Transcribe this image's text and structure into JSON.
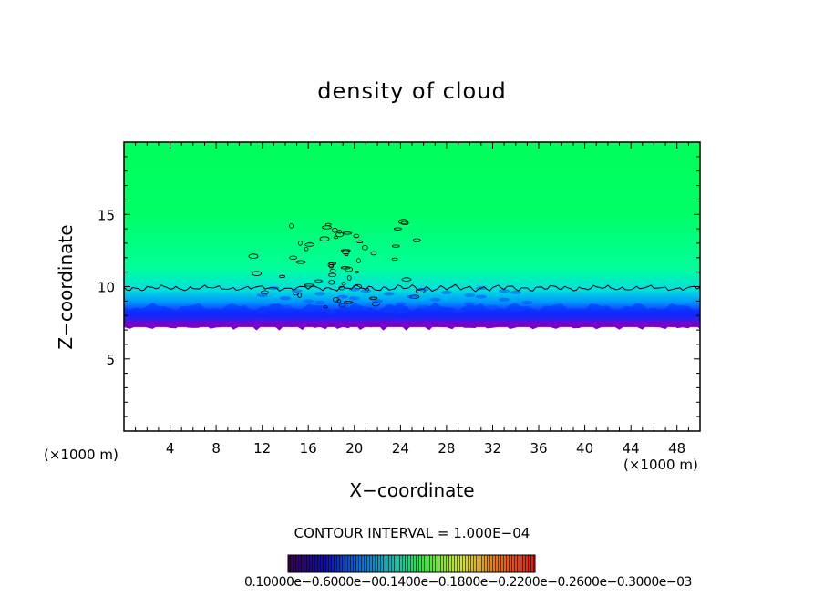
{
  "chart_data": {
    "type": "heatmap",
    "title": "density of cloud",
    "xlabel": "X−coordinate",
    "ylabel": "Z−coordinate",
    "x_unit_left": "(×1000 m)",
    "x_unit_right": "(×1000 m)",
    "xlim": [
      0,
      50
    ],
    "ylim": [
      0,
      20
    ],
    "x_ticks": [
      4,
      8,
      12,
      16,
      20,
      24,
      28,
      32,
      36,
      40,
      44,
      48
    ],
    "y_ticks": [
      5,
      10,
      15
    ],
    "contour_interval": "CONTOUR INTERVAL = 1.000E−04",
    "colorbar_labels": "0.10000e−0.6000e−00.1400e−0.1800e−0.2200e−0.2600e−0.3000e−03",
    "field": {
      "empty_below_z": 7.2,
      "contour_level_z": 9.9,
      "disturbance_center_x": 19,
      "disturbance_top_z": 15
    },
    "colors": {
      "upper": "#00ff66",
      "transition": "#00ccff",
      "lower": "#0033ff",
      "base": "#7a00cc",
      "contour": "#000000"
    }
  }
}
